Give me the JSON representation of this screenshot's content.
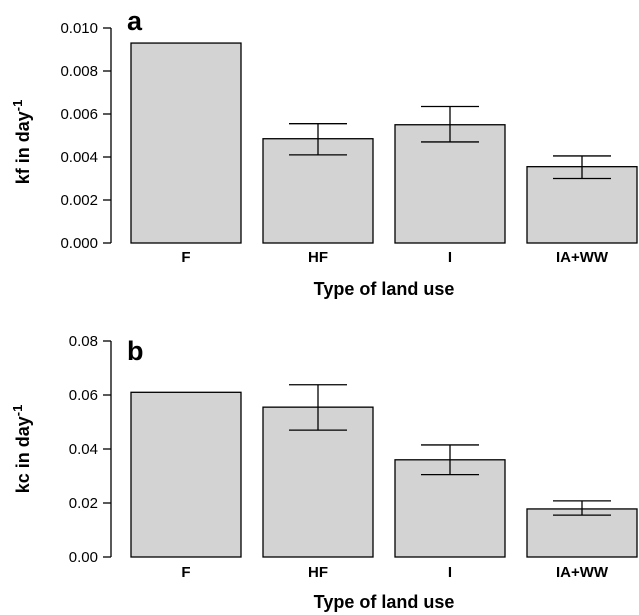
{
  "chart_data": [
    {
      "type": "bar",
      "panel_label": "a",
      "categories": [
        "F",
        "HF",
        "I",
        "IA+WW"
      ],
      "values": [
        0.0093,
        0.00485,
        0.0055,
        0.00355
      ],
      "error_low": [
        null,
        0.0041,
        0.0047,
        0.003
      ],
      "error_high": [
        null,
        0.00555,
        0.00635,
        0.00405
      ],
      "ylabel": "kf in day",
      "ylabel_sup": "-1",
      "xlabel": "Type of land use",
      "ylim": [
        0,
        0.01
      ],
      "yticks": [
        "0.000",
        "0.002",
        "0.004",
        "0.006",
        "0.008",
        "0.010"
      ],
      "ytick_values": [
        0,
        0.002,
        0.004,
        0.006,
        0.008,
        0.01
      ],
      "bar_color": "#d3d3d3",
      "grid": false
    },
    {
      "type": "bar",
      "panel_label": "b",
      "categories": [
        "F",
        "HF",
        "I",
        "IA+WW"
      ],
      "values": [
        0.061,
        0.0555,
        0.036,
        0.0178
      ],
      "error_low": [
        null,
        0.047,
        0.0305,
        0.0155
      ],
      "error_high": [
        null,
        0.0638,
        0.0415,
        0.0208
      ],
      "ylabel": "kc in day",
      "ylabel_sup": "-1",
      "xlabel": "Type of land use",
      "ylim": [
        0,
        0.08
      ],
      "yticks": [
        "0.00",
        "0.02",
        "0.04",
        "0.06",
        "0.08"
      ],
      "ytick_values": [
        0,
        0.02,
        0.04,
        0.06,
        0.08
      ],
      "bar_color": "#d3d3d3",
      "grid": false
    }
  ]
}
